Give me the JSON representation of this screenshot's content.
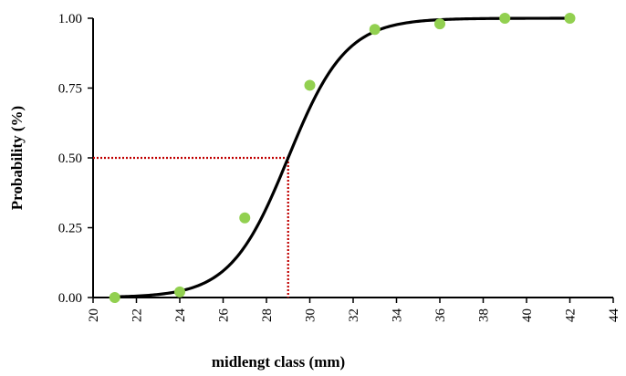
{
  "chart_data": {
    "type": "scatter",
    "xlabel": "midlengt class (mm)",
    "ylabel": "Probability (%)",
    "xlim": [
      20,
      44
    ],
    "ylim": [
      0,
      1
    ],
    "x_ticks": [
      20,
      22,
      24,
      26,
      28,
      30,
      32,
      34,
      36,
      38,
      40,
      42,
      44
    ],
    "y_ticks": [
      0,
      0.25,
      0.5,
      0.75,
      1
    ],
    "y_tick_labels": [
      "0.00",
      "0.25",
      "0.50",
      "0.75",
      "1.00"
    ],
    "grid": false,
    "legend": "none",
    "series": [
      {
        "kind": "points",
        "color": "#92d050",
        "points": [
          {
            "x": 21,
            "y": 0.0
          },
          {
            "x": 24,
            "y": 0.02
          },
          {
            "x": 27,
            "y": 0.285
          },
          {
            "x": 30,
            "y": 0.76
          },
          {
            "x": 33,
            "y": 0.96
          },
          {
            "x": 36,
            "y": 0.98
          },
          {
            "x": 39,
            "y": 1.0
          },
          {
            "x": 42,
            "y": 1.0
          }
        ]
      },
      {
        "kind": "logistic-curve",
        "color": "#000000",
        "l50": 29.0,
        "slope": 0.75,
        "x_range": [
          21,
          42
        ]
      }
    ],
    "annotations": [
      {
        "kind": "reference-line",
        "style": "dotted",
        "color": "#c00000",
        "x": 29.0,
        "y": 0.5
      }
    ]
  }
}
